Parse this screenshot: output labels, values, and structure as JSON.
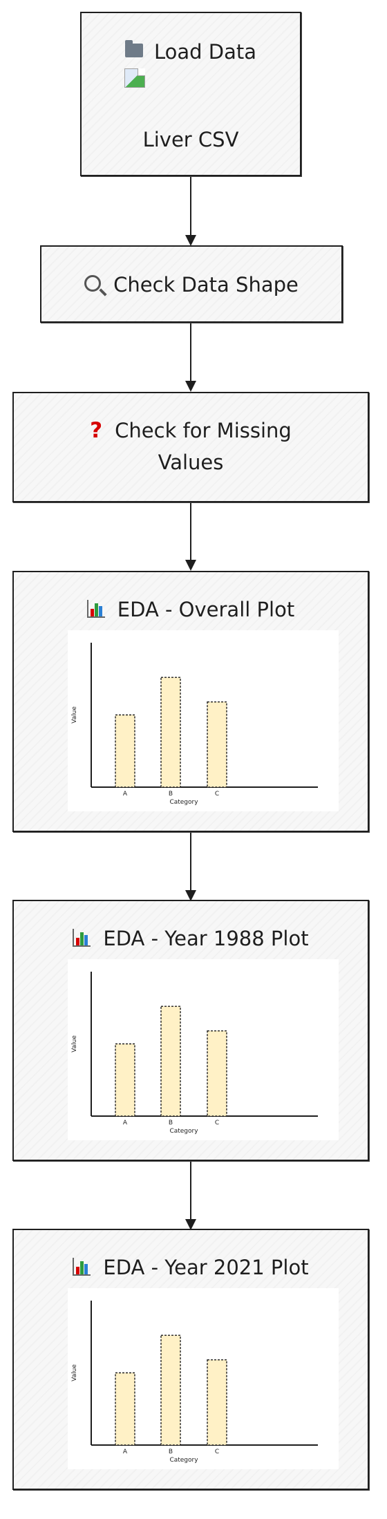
{
  "nodes": {
    "load_data": {
      "icon": "folder-icon",
      "title": "Load Data",
      "subtitle": "Liver CSV",
      "image_icon": "broken-image-icon"
    },
    "check_shape": {
      "icon": "search-icon",
      "title": "Check Data Shape"
    },
    "check_missing": {
      "icon": "question-icon",
      "icon_text": "?",
      "title_line1": "Check for Missing",
      "title_line2": "Values"
    },
    "eda_overall": {
      "icon": "bar-chart-icon",
      "title": "EDA - Overall Plot"
    },
    "eda_1988": {
      "icon": "bar-chart-icon",
      "title": "EDA - Year 1988 Plot"
    },
    "eda_2021": {
      "icon": "bar-chart-icon",
      "title": "EDA - Year 2021 Plot"
    }
  },
  "chart_data": [
    {
      "type": "bar",
      "categories": [
        "A",
        "B",
        "C"
      ],
      "values": [
        50,
        76,
        59
      ],
      "xlabel": "Category",
      "ylabel": "Value",
      "ylim": [
        0,
        100
      ]
    },
    {
      "type": "bar",
      "categories": [
        "A",
        "B",
        "C"
      ],
      "values": [
        50,
        76,
        59
      ],
      "xlabel": "Category",
      "ylabel": "Value",
      "ylim": [
        0,
        100
      ]
    },
    {
      "type": "bar",
      "categories": [
        "A",
        "B",
        "C"
      ],
      "values": [
        50,
        76,
        59
      ],
      "xlabel": "Category",
      "ylabel": "Value",
      "ylim": [
        0,
        100
      ]
    }
  ],
  "colors": {
    "bar_fill": "#fff1c6",
    "stroke": "#1e1e1e",
    "node_fill": "#f7f7f7",
    "icon_red": "#d60000",
    "icon_green": "#2e9b3d",
    "icon_blue": "#2a7fd4"
  }
}
